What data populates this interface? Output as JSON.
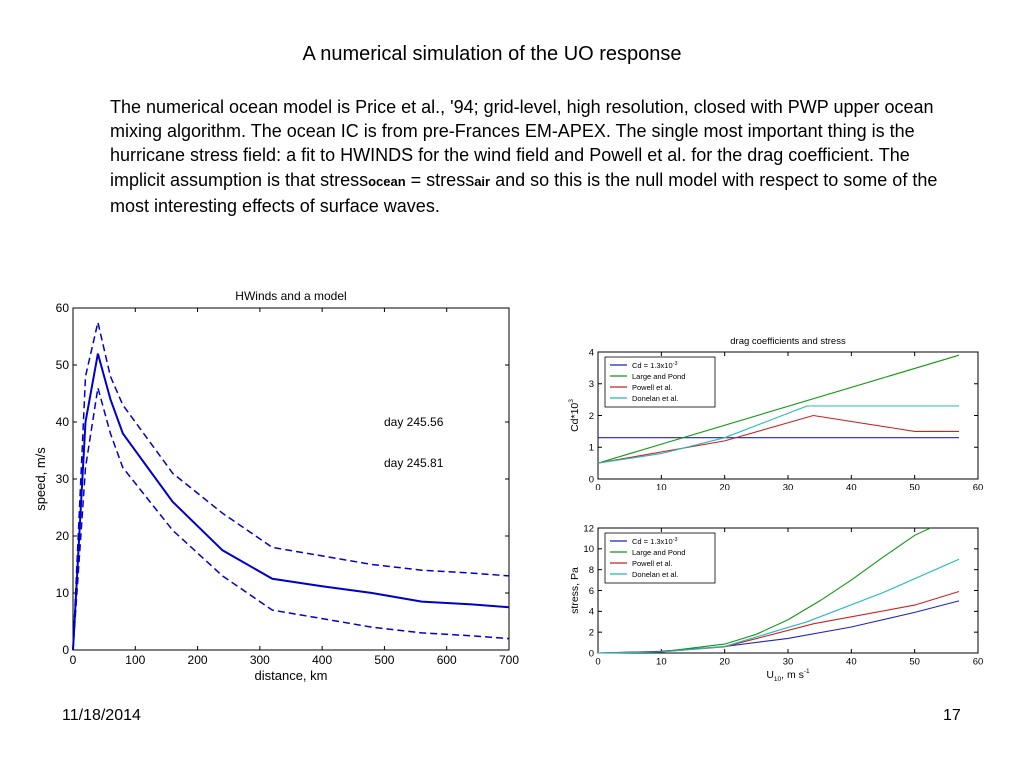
{
  "slide": {
    "title": "A numerical simulation of the UO response",
    "body": {
      "part1": "The numerical ocean model is Price et al., '94; grid-level, high resolution, closed with PWP upper ocean mixing algorithm. The ocean IC is from pre-Frances EM-APEX. The single most important thing is the hurricane stress field:  a fit to HWINDS for the wind field and Powell et al. for the drag coefficient.  The implicit assumption is that stress",
      "sub1": "ocean",
      "mid": " = stress",
      "sub2": "air",
      "part2": " and so this is the null model with respect to some of the most interesting effects of surface waves."
    },
    "footer": {
      "date": "11/18/2014",
      "page": "17"
    }
  },
  "chart_data": [
    {
      "type": "line",
      "title": "HWinds and a model",
      "xlabel": "distance, km",
      "ylabel": "speed, m/s",
      "xlim": [
        0,
        700
      ],
      "ylim": [
        0,
        60
      ],
      "xticks": [
        "0",
        "100",
        "200",
        "300",
        "400",
        "500",
        "600",
        "700"
      ],
      "yticks": [
        "0",
        "10",
        "20",
        "30",
        "40",
        "50",
        "60"
      ],
      "annotations": [
        "day 245.56",
        "day 245.81"
      ],
      "series": [
        {
          "style": "solid",
          "color": "#0000cc",
          "x": [
            0,
            20,
            40,
            60,
            80,
            120,
            160,
            240,
            320,
            400,
            480,
            560,
            640,
            700
          ],
          "y": [
            0,
            40,
            52,
            44,
            38,
            32,
            26,
            17.5,
            12.5,
            11.2,
            10,
            8.5,
            8,
            7.5
          ]
        },
        {
          "style": "dashed",
          "color": "#0000cc",
          "x": [
            0,
            20,
            40,
            60,
            80,
            160,
            240,
            320,
            400,
            480,
            560,
            640,
            700
          ],
          "y": [
            0,
            48,
            57.5,
            48,
            43,
            31,
            24,
            18,
            16.5,
            15,
            14,
            13.5,
            13
          ]
        },
        {
          "style": "dashed",
          "color": "#0000cc",
          "x": [
            0,
            20,
            40,
            60,
            80,
            160,
            240,
            320,
            400,
            480,
            560,
            640,
            700
          ],
          "y": [
            0,
            32,
            46,
            38,
            32,
            21,
            13,
            7,
            5.5,
            4,
            3,
            2.5,
            2
          ]
        }
      ]
    },
    {
      "type": "line",
      "title": "drag coefficients and stress",
      "ylabel": "Cd*10",
      "ylabel_exp": "3",
      "xlim": [
        0,
        60
      ],
      "ylim": [
        0,
        4
      ],
      "xticks": [
        "0",
        "10",
        "20",
        "30",
        "40",
        "50",
        "60"
      ],
      "yticks": [
        "0",
        "1",
        "2",
        "3",
        "4"
      ],
      "legend": "top-left",
      "series": [
        {
          "name": "Cd = 1.3x10",
          "name_exp": "-3",
          "color": "#2222bb",
          "x": [
            0,
            57
          ],
          "y": [
            1.3,
            1.3
          ]
        },
        {
          "name": "Large and Pond",
          "color": "#119911",
          "x": [
            0,
            57
          ],
          "y": [
            0.5,
            3.9
          ]
        },
        {
          "name": "Powell et al.",
          "color": "#cc2222",
          "x": [
            0,
            20,
            34,
            50,
            57
          ],
          "y": [
            0.5,
            1.2,
            2.0,
            1.5,
            1.5
          ]
        },
        {
          "name": "Donelan et al.",
          "color": "#22bbbb",
          "x": [
            0,
            10,
            20,
            33,
            57
          ],
          "y": [
            0.5,
            0.8,
            1.3,
            2.3,
            2.3
          ]
        }
      ]
    },
    {
      "type": "line",
      "xlabel": "U",
      "xlabel_sub": "10",
      "xlabel_unit": ", m s",
      "xlabel_exp": "-1",
      "ylabel": "stress, Pa",
      "xlim": [
        0,
        60
      ],
      "ylim": [
        0,
        12
      ],
      "xticks": [
        "0",
        "10",
        "20",
        "30",
        "40",
        "50",
        "60"
      ],
      "yticks": [
        "0",
        "2",
        "4",
        "6",
        "8",
        "10",
        "12"
      ],
      "legend": "top-left",
      "series": [
        {
          "name": "Cd = 1.3x10",
          "name_exp": "-3",
          "color": "#2222bb",
          "x": [
            0,
            10,
            20,
            30,
            40,
            50,
            57
          ],
          "y": [
            0,
            0.16,
            0.62,
            1.4,
            2.5,
            3.9,
            5.0
          ]
        },
        {
          "name": "Large and Pond",
          "color": "#119911",
          "x": [
            0,
            10,
            20,
            25,
            30,
            35,
            40,
            45,
            50,
            52.5
          ],
          "y": [
            0,
            0.12,
            0.85,
            1.8,
            3.2,
            5.0,
            7.0,
            9.2,
            11.3,
            12
          ]
        },
        {
          "name": "Powell et al.",
          "color": "#cc2222",
          "x": [
            0,
            10,
            20,
            34,
            50,
            57
          ],
          "y": [
            0,
            0.12,
            0.6,
            2.8,
            4.6,
            5.9
          ]
        },
        {
          "name": "Donelan et al.",
          "color": "#22bbbb",
          "x": [
            0,
            10,
            20,
            33,
            45,
            57
          ],
          "y": [
            0,
            0.1,
            0.63,
            3.0,
            5.8,
            9.0
          ]
        }
      ]
    }
  ]
}
